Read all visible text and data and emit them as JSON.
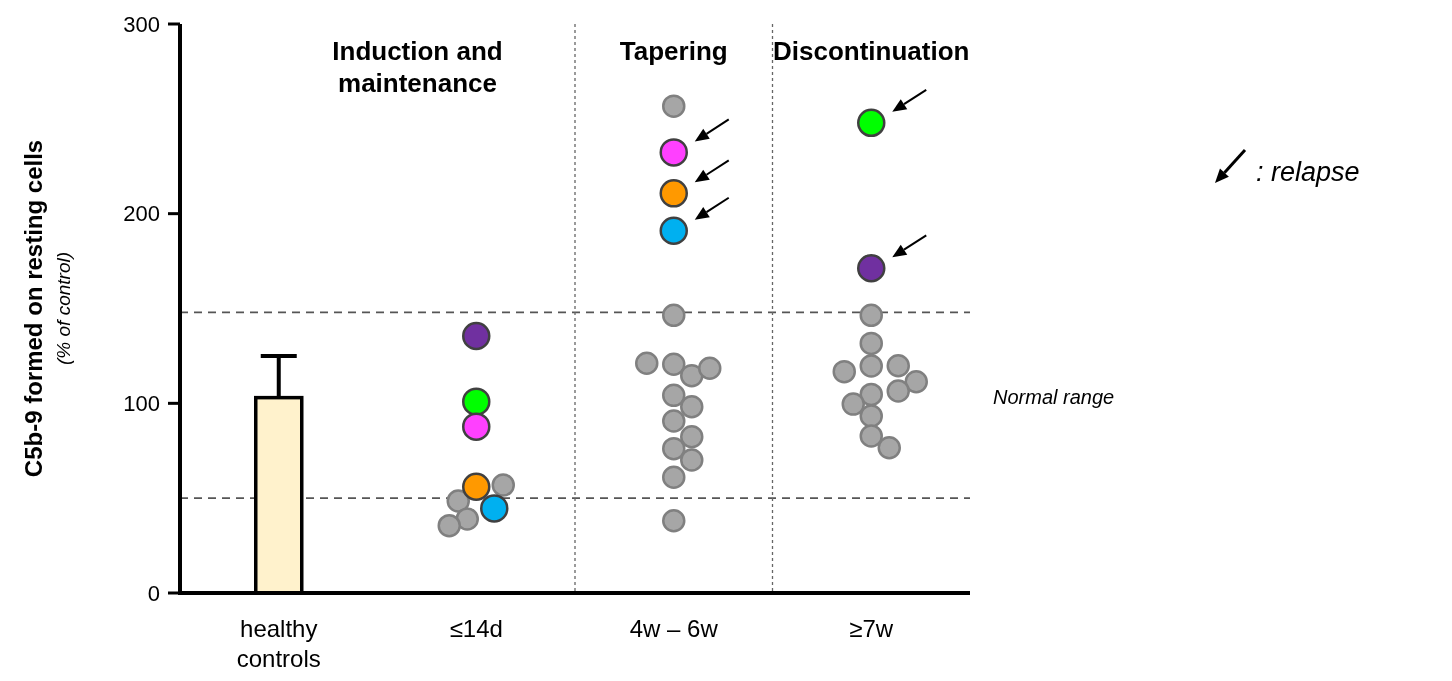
{
  "chart_data": {
    "type": "scatter",
    "ylabel": "C5b-9 formed on resting cells\n(% of control)",
    "categories": [
      "healthy controls",
      "≤14d",
      "4w – 6w",
      "≥7w"
    ],
    "ylim": [
      0,
      300
    ],
    "yticks": [
      0,
      100,
      200,
      300
    ],
    "marker": "circle",
    "grid": false,
    "ref_lines": [
      {
        "axis": "y",
        "value": 148,
        "line_style": "dashed"
      },
      {
        "axis": "y",
        "value": 50,
        "line_style": "dashed"
      }
    ],
    "annotations": [
      "Induction and maintenance",
      "Tapering",
      "Discontinuation",
      "Normal range",
      ": relapse"
    ],
    "series": [
      {
        "type": "bar",
        "color": "#fff2cc",
        "values": [
          103,
          null,
          null,
          null
        ],
        "errors": [
          [
            103,
            125
          ],
          null,
          null,
          null
        ]
      },
      {
        "color": "#a6a6a6",
        "x": [
          "≤14d",
          "≤14d",
          "≤14d",
          "≤14d",
          "4w – 6w",
          "4w – 6w",
          "4w – 6w",
          "4w – 6w",
          "4w – 6w",
          "4w – 6w",
          "4w – 6w",
          "4w – 6w",
          "4w – 6w",
          "4w – 6w",
          "4w – 6w",
          "4w – 6w",
          "4w – 6w",
          "4w – 6w",
          "≥7w",
          "≥7w",
          "≥7w",
          "≥7w",
          "≥7w",
          "≥7w",
          "≥7w",
          "≥7w",
          "≥7w",
          "≥7w",
          "≥7w",
          "≥7w"
        ],
        "values": [
          56.9,
          48.5,
          39,
          35.5,
          256.7,
          146.4,
          120.6,
          114.6,
          121.1,
          118.5,
          104.2,
          98.2,
          90.7,
          82.4,
          76.1,
          70.1,
          61,
          38.1,
          146.4,
          131.6,
          119.7,
          119.8,
          116.7,
          111.4,
          104.7,
          106.5,
          99.6,
          93.3,
          82.8,
          76.6
        ]
      },
      {
        "color": "#7030a0",
        "x": [
          "≤14d",
          "≥7w"
        ],
        "values": [
          135.5,
          171.2
        ]
      },
      {
        "color": "#00ff00",
        "x": [
          "≤14d",
          "≥7w"
        ],
        "values": [
          100.9,
          247.9
        ]
      },
      {
        "color": "#ff40ff",
        "x": [
          "≤14d",
          "4w – 6w"
        ],
        "values": [
          87.7,
          232.3
        ]
      },
      {
        "color": "#ff9900",
        "x": [
          "≤14d",
          "4w – 6w"
        ],
        "values": [
          56,
          210.7
        ]
      },
      {
        "color": "#00b0f0",
        "x": [
          "≤14d",
          "4w – 6w"
        ],
        "values": [
          44.6,
          191
        ]
      }
    ]
  }
}
